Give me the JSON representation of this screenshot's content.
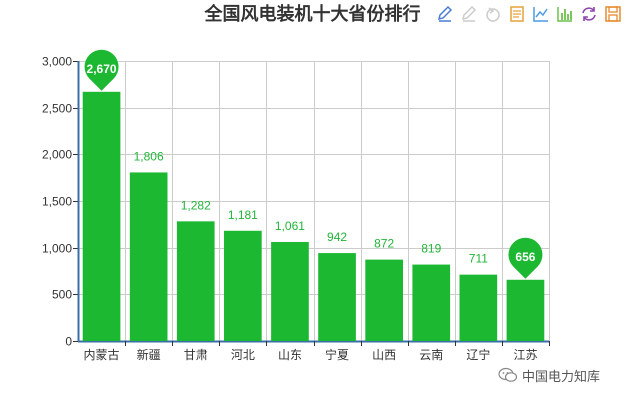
{
  "chart_data": {
    "type": "bar",
    "title": "全国风电装机十大省份排行",
    "categories": [
      "内蒙古",
      "新疆",
      "甘肃",
      "河北",
      "山东",
      "宁夏",
      "山西",
      "云南",
      "辽宁",
      "江苏"
    ],
    "values": [
      2670,
      1806,
      1282,
      1181,
      1061,
      942,
      872,
      819,
      711,
      656
    ],
    "data_labels": [
      "2,670",
      "1,806",
      "1,282",
      "1,181",
      "1,061",
      "942",
      "872",
      "819",
      "711",
      "656"
    ],
    "ylim": [
      0,
      3000
    ],
    "yticks": [
      0,
      500,
      1000,
      1500,
      2000,
      2500,
      3000
    ],
    "ytick_labels": [
      "0",
      "500",
      "1,000",
      "1,500",
      "2,000",
      "2,500",
      "3,000"
    ],
    "xlabel": "",
    "ylabel": "",
    "grid": true,
    "bar_color": "#1db832",
    "label_color": "#22b538",
    "mark_points": [
      {
        "category": "内蒙古",
        "type": "max",
        "label": "2,670"
      },
      {
        "category": "江苏",
        "type": "min",
        "label": "656"
      }
    ]
  },
  "toolbox": {
    "icons": [
      "edit-icon",
      "eraser-icon",
      "restore-icon",
      "data-view-icon",
      "line-chart-icon",
      "bar-chart-icon",
      "refresh-icon",
      "save-icon"
    ],
    "colors": [
      "#4c7bd6",
      "#cccccc",
      "#cccccc",
      "#e6a23c",
      "#4c9be6",
      "#6cc04a",
      "#8e44ad",
      "#e68a2e"
    ]
  },
  "watermark": {
    "text": "中国电力知库",
    "icon": "wechat-icon"
  }
}
